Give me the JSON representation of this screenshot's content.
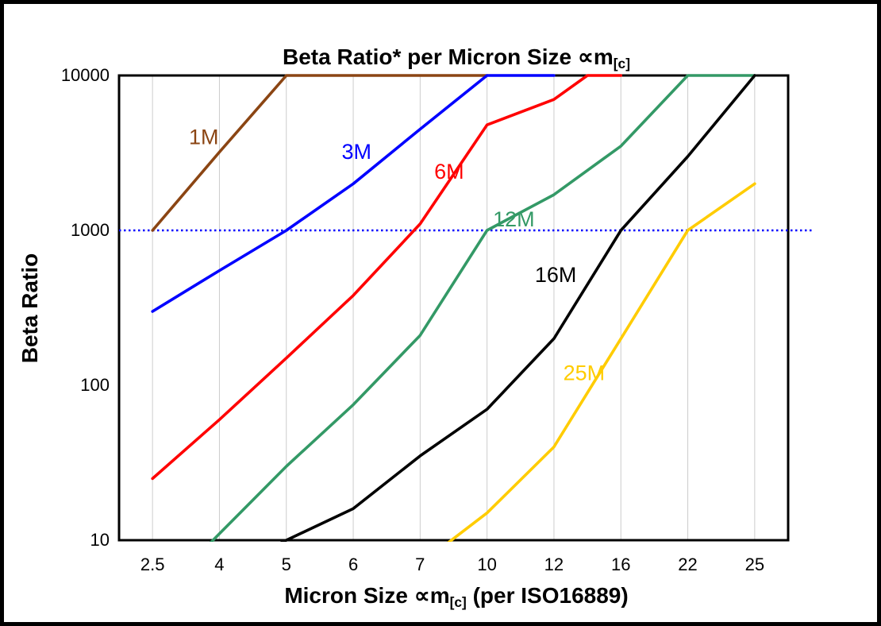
{
  "title": {
    "pre": "Beta Ratio* per Micron Size ",
    "symbol": "∝m",
    "sub": "[c]"
  },
  "xlabel": {
    "pre": "Micron Size ",
    "symbol": "∝m",
    "sub": "[c]",
    "post": " (per ISO16889)"
  },
  "chart_data": {
    "type": "line",
    "title": "Beta Ratio* per Micron Size ∝m[c]",
    "xlabel": "Micron Size ∝m[c] (per ISO16889)",
    "ylabel": "Beta Ratio",
    "x_categories": [
      2.5,
      4,
      5,
      6,
      7,
      10,
      12,
      16,
      22,
      25
    ],
    "x_scale": "categorical",
    "y_scale": "log",
    "ylim": [
      10,
      10000
    ],
    "y_ticks": [
      10,
      100,
      1000,
      10000
    ],
    "grid": {
      "vertical": true,
      "horizontal": false,
      "color": "#cccccc"
    },
    "frame_color": "#000000",
    "legend_position": "inline-labels",
    "reference_line": {
      "y": 1000,
      "color": "#0000ff",
      "style": "dotted"
    },
    "series": [
      {
        "name": "1M",
        "color": "#8B4513",
        "points": [
          [
            2.5,
            1000
          ],
          [
            4,
            3200
          ],
          [
            5,
            10000
          ],
          [
            10,
            10000
          ]
        ]
      },
      {
        "name": "3M",
        "color": "#0000ff",
        "points": [
          [
            2.5,
            300
          ],
          [
            4,
            550
          ],
          [
            5,
            1000
          ],
          [
            6,
            2000
          ],
          [
            7,
            4500
          ],
          [
            10,
            10000
          ],
          [
            12,
            10000
          ]
        ]
      },
      {
        "name": "6M",
        "color": "#ff0000",
        "points": [
          [
            2.5,
            25
          ],
          [
            4,
            60
          ],
          [
            5,
            150
          ],
          [
            6,
            380
          ],
          [
            7,
            1100
          ],
          [
            10,
            4800
          ],
          [
            12,
            7000
          ],
          [
            14,
            10000
          ],
          [
            16,
            10000
          ]
        ]
      },
      {
        "name": "12M",
        "color": "#339966",
        "points": [
          [
            2.5,
            4
          ],
          [
            4,
            11
          ],
          [
            5,
            30
          ],
          [
            6,
            75
          ],
          [
            7,
            210
          ],
          [
            10,
            1000
          ],
          [
            12,
            1700
          ],
          [
            16,
            3500
          ],
          [
            22,
            10000
          ],
          [
            25,
            10000
          ]
        ]
      },
      {
        "name": "16M",
        "color": "#000000",
        "points": [
          [
            4,
            6
          ],
          [
            5,
            10
          ],
          [
            6,
            16
          ],
          [
            7,
            35
          ],
          [
            10,
            70
          ],
          [
            12,
            200
          ],
          [
            16,
            1000
          ],
          [
            22,
            3000
          ],
          [
            25,
            10000
          ]
        ]
      },
      {
        "name": "25M",
        "color": "#ffcc00",
        "points": [
          [
            7,
            7
          ],
          [
            10,
            15
          ],
          [
            12,
            40
          ],
          [
            16,
            200
          ],
          [
            22,
            1000
          ],
          [
            25,
            2000
          ]
        ]
      }
    ],
    "labels": [
      {
        "text": "1M",
        "x": 3.65,
        "y": 3600,
        "color": "#8B4513"
      },
      {
        "text": "3M",
        "x": 6.05,
        "y": 2900,
        "color": "#0000ff"
      },
      {
        "text": "6M",
        "x": 8.3,
        "y": 2150,
        "color": "#ff0000"
      },
      {
        "text": "12M",
        "x": 10.8,
        "y": 1060,
        "color": "#339966"
      },
      {
        "text": "16M",
        "x": 12.1,
        "y": 465,
        "color": "#000000"
      },
      {
        "text": "25M",
        "x": 13.8,
        "y": 108,
        "color": "#ffcc00"
      }
    ]
  }
}
